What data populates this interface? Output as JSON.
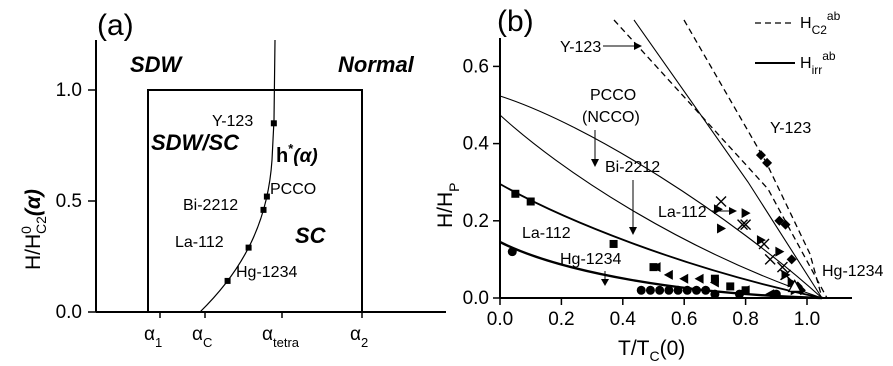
{
  "chart_data": [
    {
      "type": "line",
      "panel_label": "(a)",
      "ylabel": "H/H",
      "ylabel_sup": "0",
      "ylabel_sub": "C2",
      "ylabel_paren": "(α)",
      "ylim": [
        0,
        1.25
      ],
      "yticks": [
        {
          "v": 0.0,
          "label": "0.0"
        },
        {
          "v": 0.5,
          "label": "0.5"
        },
        {
          "v": 1.0,
          "label": "1.0"
        }
      ],
      "x_tick_labels": [
        {
          "main": "α",
          "sub": "1"
        },
        {
          "main": "α",
          "sub": "C"
        },
        {
          "main": "α",
          "sub": "tetra"
        },
        {
          "main": "α",
          "sub": "2"
        }
      ],
      "regions": {
        "sdw": "SDW",
        "normal": "Normal",
        "sdw_sc": "SDW/SC",
        "sc": "SC"
      },
      "curve_label": {
        "main": "h",
        "sup": "*",
        "paren": "(α)"
      },
      "points": [
        {
          "name": "Y-123",
          "y": 0.85
        },
        {
          "name": "PCCO",
          "y": 0.52
        },
        {
          "name": "Bi-2212",
          "y": 0.46
        },
        {
          "name": "La-112",
          "y": 0.29
        },
        {
          "name": "Hg-1234",
          "y": 0.14
        }
      ]
    },
    {
      "type": "line",
      "panel_label": "(b)",
      "xlabel": "T/T",
      "xlabel_sub": "C",
      "xlabel_paren": "(0)",
      "ylabel": "H/H",
      "ylabel_sub": "P",
      "xlim": [
        0,
        1.05
      ],
      "ylim": [
        0,
        0.67
      ],
      "xticks": [
        {
          "v": 0.0,
          "label": "0.0"
        },
        {
          "v": 0.2,
          "label": "0.2"
        },
        {
          "v": 0.4,
          "label": "0.4"
        },
        {
          "v": 0.6,
          "label": "0.6"
        },
        {
          "v": 0.8,
          "label": "0.8"
        },
        {
          "v": 1.0,
          "label": "1.0"
        }
      ],
      "yticks": [
        {
          "v": 0.0,
          "label": "0.0"
        },
        {
          "v": 0.2,
          "label": "0.2"
        },
        {
          "v": 0.4,
          "label": "0.4"
        },
        {
          "v": 0.6,
          "label": "0.6"
        }
      ],
      "legend": [
        {
          "name": "H",
          "sub": "C2",
          "sup": "ab",
          "style": "dashed"
        },
        {
          "name": "H",
          "sub": "irr",
          "sup": "ab",
          "style": "solid"
        }
      ],
      "annotations": [
        "Y-123",
        "PCCO",
        "(NCCO)",
        "Bi-2212",
        "La-112",
        "Hg-1234",
        "La-112",
        "Y-123",
        "Hg-1234"
      ],
      "series": [
        {
          "marker": "cross",
          "style": "dashed",
          "x": [
            0.72,
            0.79,
            0.8,
            0.86,
            0.88,
            0.92,
            0.93
          ],
          "y": [
            0.25,
            0.19,
            0.19,
            0.14,
            0.1,
            0.08,
            0.06
          ]
        },
        {
          "marker": "diamond",
          "style": "dashed",
          "x": [
            0.85,
            0.87,
            0.91,
            0.93,
            0.95,
            0.97,
            0.98
          ],
          "y": [
            0.37,
            0.35,
            0.2,
            0.19,
            0.1,
            0.03,
            0.02
          ]
        },
        {
          "marker": "right-triangle",
          "x": [
            0.71,
            0.72,
            0.8,
            0.85,
            0.91,
            0.93,
            0.95,
            0.96
          ],
          "y": [
            0.23,
            0.18,
            0.22,
            0.15,
            0.12,
            0.06,
            0.04,
            0.02
          ]
        },
        {
          "marker": "open-triangle",
          "x": [
            0.96
          ],
          "y": [
            0.03
          ]
        },
        {
          "marker": "left-triangle",
          "x": [
            0.51,
            0.55,
            0.6,
            0.65,
            0.7,
            0.8,
            0.88
          ],
          "y": [
            0.08,
            0.06,
            0.05,
            0.05,
            0.04,
            0.02,
            0.01
          ]
        },
        {
          "marker": "square",
          "x": [
            0.05,
            0.1,
            0.37,
            0.5,
            0.7,
            0.75,
            0.8
          ],
          "y": [
            0.27,
            0.25,
            0.14,
            0.08,
            0.05,
            0.03,
            0.02
          ]
        },
        {
          "marker": "circle",
          "x": [
            0.04,
            0.46,
            0.49,
            0.52,
            0.55,
            0.58,
            0.61,
            0.64,
            0.67,
            0.7,
            0.78,
            0.9
          ],
          "y": [
            0.12,
            0.02,
            0.02,
            0.02,
            0.02,
            0.02,
            0.02,
            0.02,
            0.02,
            0.01,
            0.01,
            0.01
          ]
        }
      ]
    }
  ]
}
